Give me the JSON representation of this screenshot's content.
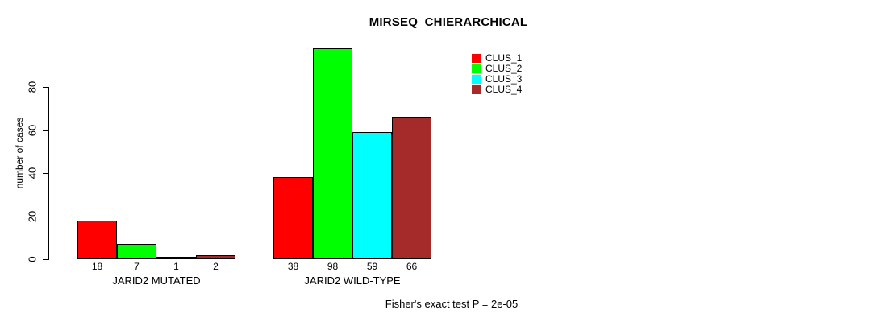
{
  "chart_data": {
    "type": "bar",
    "title": "MIRSEQ_CHIERARCHICAL",
    "ylabel": "number of cases",
    "xlabel": "",
    "categories": [
      "JARID2 MUTATED",
      "JARID2 WILD-TYPE"
    ],
    "series": [
      {
        "name": "CLUS_1",
        "color": "#ff0000",
        "values": [
          18,
          38
        ]
      },
      {
        "name": "CLUS_2",
        "color": "#00ff00",
        "values": [
          7,
          98
        ]
      },
      {
        "name": "CLUS_3",
        "color": "#00ffff",
        "values": [
          1,
          59
        ]
      },
      {
        "name": "CLUS_4",
        "color": "#a52a2a",
        "values": [
          2,
          66
        ]
      }
    ],
    "yticks": [
      0,
      20,
      40,
      60,
      80
    ],
    "ylim": [
      0,
      100
    ],
    "grid": false,
    "legend_position": "top-right",
    "bar_value_labels": true,
    "annotation": "Fisher's exact test P = 2e-05"
  }
}
